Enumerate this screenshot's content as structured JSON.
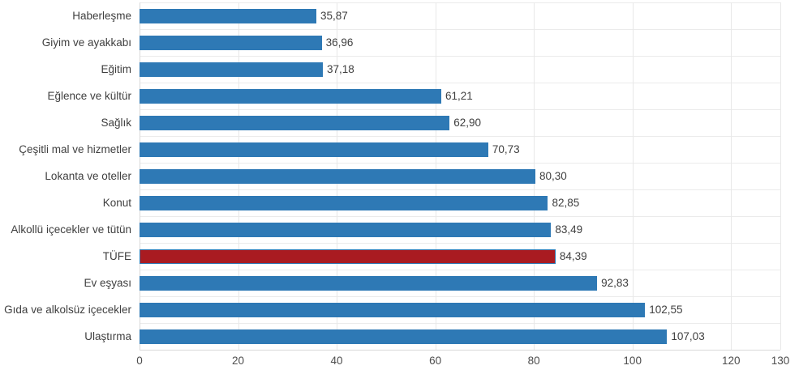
{
  "chart_data": {
    "type": "bar",
    "orientation": "horizontal",
    "title": "",
    "xlabel": "",
    "ylabel": "",
    "xlim": [
      0,
      130
    ],
    "xticks": [
      0,
      20,
      40,
      60,
      80,
      100,
      120,
      130
    ],
    "xtick_labels": [
      "0",
      "20",
      "40",
      "60",
      "80",
      "100",
      "120",
      "130"
    ],
    "grid": true,
    "legend": false,
    "decimal_separator": ",",
    "bar_color": "#2e79b5",
    "highlight_color": "#a91b21",
    "highlight_border_color": "#2e79b5",
    "text_color": "#3f3f3f",
    "categories": [
      "Haberleşme",
      "Giyim ve ayakkabı",
      "Eğitim",
      "Eğlence ve kültür",
      "Sağlık",
      "Çeşitli mal ve hizmetler",
      "Lokanta ve oteller",
      "Konut",
      "Alkollü içecekler ve tütün",
      "TÜFE",
      "Ev eşyası",
      "Gıda ve alkolsüz içecekler",
      "Ulaştırma"
    ],
    "values": [
      35.87,
      36.96,
      37.18,
      61.21,
      62.9,
      70.73,
      80.3,
      82.85,
      83.49,
      84.39,
      92.83,
      102.55,
      107.03
    ],
    "value_labels": [
      "35,87",
      "36,96",
      "37,18",
      "61,21",
      "62,90",
      "70,73",
      "80,30",
      "82,85",
      "83,49",
      "84,39",
      "92,83",
      "102,55",
      "107,03"
    ],
    "highlight_category": "TÜFE"
  }
}
